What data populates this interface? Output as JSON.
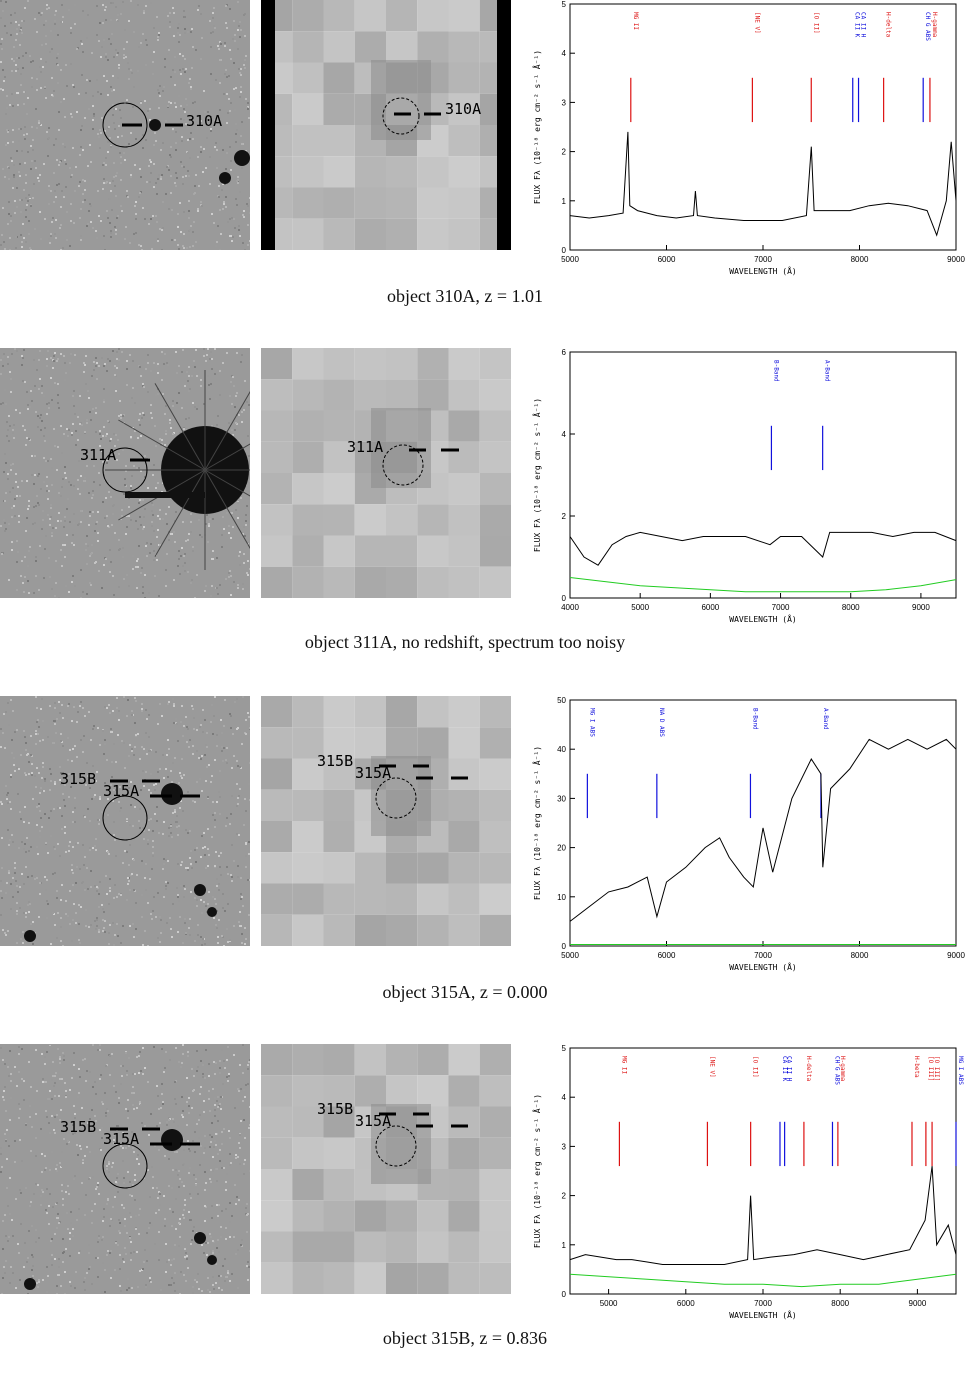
{
  "panels": [
    {
      "id": "310A",
      "caption": "object 310A, z = 1.01",
      "labels": [
        "310A"
      ],
      "chart_data": {
        "type": "line",
        "xlabel": "WAVELENGTH (Å)",
        "ylabel": "FLUX Fλ (10⁻¹⁸ erg cm⁻² s⁻¹ Å⁻¹)",
        "xlim": [
          5000,
          9000
        ],
        "ylim": [
          0,
          5
        ],
        "xticks": [
          5000,
          6000,
          7000,
          8000,
          9000
        ],
        "yticks": [
          0,
          1,
          2,
          3,
          4,
          5
        ],
        "lines": [
          {
            "label": "MG II",
            "x": 5630,
            "color": "#d11"
          },
          {
            "label": "[NE V]",
            "x": 6890,
            "color": "#d11"
          },
          {
            "label": "[O II]",
            "x": 7500,
            "color": "#d11"
          },
          {
            "label": "CA II K",
            "x": 7930,
            "color": "#11d"
          },
          {
            "label": "CA II H",
            "x": 7990,
            "color": "#11d"
          },
          {
            "label": "H-delta",
            "x": 8250,
            "color": "#d11"
          },
          {
            "label": "CH G ABS",
            "x": 8660,
            "color": "#11d"
          },
          {
            "label": "H-gamma",
            "x": 8730,
            "color": "#d11"
          }
        ],
        "series": [
          {
            "color": "#000",
            "values": [
              [
                5000,
                0.7
              ],
              [
                5200,
                0.65
              ],
              [
                5400,
                0.7
              ],
              [
                5550,
                0.75
              ],
              [
                5600,
                2.4
              ],
              [
                5620,
                0.9
              ],
              [
                5700,
                0.8
              ],
              [
                5900,
                0.7
              ],
              [
                6100,
                0.65
              ],
              [
                6280,
                0.7
              ],
              [
                6300,
                1.2
              ],
              [
                6320,
                0.7
              ],
              [
                6500,
                0.65
              ],
              [
                6800,
                0.6
              ],
              [
                7000,
                0.6
              ],
              [
                7200,
                0.6
              ],
              [
                7450,
                0.7
              ],
              [
                7500,
                2.1
              ],
              [
                7530,
                0.8
              ],
              [
                7700,
                0.8
              ],
              [
                7900,
                0.8
              ],
              [
                8100,
                0.9
              ],
              [
                8300,
                0.95
              ],
              [
                8500,
                0.9
              ],
              [
                8700,
                0.8
              ],
              [
                8800,
                0.3
              ],
              [
                8900,
                1.0
              ],
              [
                8950,
                2.2
              ],
              [
                9000,
                1.0
              ]
            ]
          }
        ]
      }
    },
    {
      "id": "311A",
      "caption": "object 311A, no redshift, spectrum too noisy",
      "labels": [
        "311A"
      ],
      "chart_data": {
        "type": "line",
        "xlabel": "WAVELENGTH (Å)",
        "ylabel": "FLUX Fλ (10⁻¹⁸ erg cm⁻² s⁻¹ Å⁻¹)",
        "xlim": [
          4000,
          9500
        ],
        "ylim": [
          0,
          6
        ],
        "xticks": [
          4000,
          5000,
          6000,
          7000,
          8000,
          9000
        ],
        "yticks": [
          0,
          2,
          4,
          6
        ],
        "lines": [
          {
            "label": "B-Band",
            "x": 6870,
            "color": "#11d"
          },
          {
            "label": "A-Band",
            "x": 7600,
            "color": "#11d"
          }
        ],
        "series": [
          {
            "color": "#000",
            "values": [
              [
                4000,
                1.5
              ],
              [
                4200,
                1.0
              ],
              [
                4400,
                0.8
              ],
              [
                4600,
                1.3
              ],
              [
                4800,
                1.5
              ],
              [
                5000,
                1.6
              ],
              [
                5300,
                1.5
              ],
              [
                5600,
                1.4
              ],
              [
                5900,
                1.5
              ],
              [
                6200,
                1.5
              ],
              [
                6500,
                1.5
              ],
              [
                6850,
                1.3
              ],
              [
                7000,
                1.5
              ],
              [
                7300,
                1.5
              ],
              [
                7600,
                1.0
              ],
              [
                7700,
                1.6
              ],
              [
                8000,
                1.6
              ],
              [
                8300,
                1.6
              ],
              [
                8600,
                1.5
              ],
              [
                8900,
                1.6
              ],
              [
                9200,
                1.6
              ],
              [
                9500,
                1.4
              ]
            ]
          },
          {
            "color": "#2c2",
            "values": [
              [
                4000,
                0.5
              ],
              [
                4500,
                0.4
              ],
              [
                5000,
                0.3
              ],
              [
                5500,
                0.25
              ],
              [
                6000,
                0.2
              ],
              [
                6500,
                0.15
              ],
              [
                7000,
                0.15
              ],
              [
                7500,
                0.15
              ],
              [
                8000,
                0.15
              ],
              [
                8500,
                0.2
              ],
              [
                9000,
                0.3
              ],
              [
                9500,
                0.45
              ]
            ]
          }
        ]
      }
    },
    {
      "id": "315A",
      "caption": "object 315A, z = 0.000",
      "labels": [
        "315B",
        "315A"
      ],
      "chart_data": {
        "type": "line",
        "xlabel": "WAVELENGTH (Å)",
        "ylabel": "FLUX Fλ (10⁻¹⁸ erg cm⁻² s⁻¹ Å⁻¹)",
        "xlim": [
          5000,
          9000
        ],
        "ylim": [
          0,
          50
        ],
        "xticks": [
          5000,
          6000,
          7000,
          8000,
          9000
        ],
        "yticks": [
          0,
          10,
          20,
          30,
          40,
          50
        ],
        "lines": [
          {
            "label": "MG I ABS",
            "x": 5180,
            "color": "#11d"
          },
          {
            "label": "NA D ABS",
            "x": 5900,
            "color": "#11d"
          },
          {
            "label": "B-Band",
            "x": 6870,
            "color": "#11d"
          },
          {
            "label": "A-Band",
            "x": 7600,
            "color": "#11d"
          }
        ],
        "series": [
          {
            "color": "#000",
            "values": [
              [
                5000,
                5
              ],
              [
                5200,
                8
              ],
              [
                5400,
                11
              ],
              [
                5600,
                12
              ],
              [
                5800,
                14
              ],
              [
                5900,
                6
              ],
              [
                6000,
                13
              ],
              [
                6200,
                16
              ],
              [
                6400,
                20
              ],
              [
                6550,
                22
              ],
              [
                6650,
                18
              ],
              [
                6800,
                14
              ],
              [
                6900,
                12
              ],
              [
                7000,
                24
              ],
              [
                7100,
                15
              ],
              [
                7300,
                30
              ],
              [
                7500,
                38
              ],
              [
                7600,
                35
              ],
              [
                7620,
                16
              ],
              [
                7700,
                32
              ],
              [
                7900,
                36
              ],
              [
                8100,
                42
              ],
              [
                8300,
                40
              ],
              [
                8500,
                42
              ],
              [
                8700,
                40
              ],
              [
                8900,
                42
              ],
              [
                9000,
                40
              ]
            ]
          },
          {
            "color": "#2c2",
            "values": [
              [
                5000,
                0.3
              ],
              [
                9000,
                0.3
              ]
            ]
          }
        ]
      }
    },
    {
      "id": "315B",
      "caption": "object 315B, z = 0.836",
      "labels": [
        "315B",
        "315A"
      ],
      "chart_data": {
        "type": "line",
        "xlabel": "WAVELENGTH (Å)",
        "ylabel": "FLUX Fλ (10⁻¹⁸ erg cm⁻² s⁻¹ Å⁻¹)",
        "xlim": [
          4500,
          9500
        ],
        "ylim": [
          0,
          5
        ],
        "xticks": [
          5000,
          6000,
          7000,
          8000,
          9000
        ],
        "yticks": [
          0,
          1,
          2,
          3,
          4,
          5
        ],
        "lines": [
          {
            "label": "MG II",
            "x": 5140,
            "color": "#d11"
          },
          {
            "label": "[NE V]",
            "x": 6280,
            "color": "#d11"
          },
          {
            "label": "[O II]",
            "x": 6840,
            "color": "#d11"
          },
          {
            "label": "CA II K",
            "x": 7220,
            "color": "#11d"
          },
          {
            "label": "CA II H",
            "x": 7280,
            "color": "#11d"
          },
          {
            "label": "H-delta",
            "x": 7530,
            "color": "#d11"
          },
          {
            "label": "CH G ABS",
            "x": 7900,
            "color": "#11d"
          },
          {
            "label": "H-gamma",
            "x": 7970,
            "color": "#d11"
          },
          {
            "label": "H-beta",
            "x": 8930,
            "color": "#d11"
          },
          {
            "label": "[O III]",
            "x": 9110,
            "color": "#d11"
          },
          {
            "label": "[O III]",
            "x": 9190,
            "color": "#d11"
          },
          {
            "label": "MG I ABS",
            "x": 9500,
            "color": "#11d"
          }
        ],
        "series": [
          {
            "color": "#000",
            "values": [
              [
                4500,
                0.7
              ],
              [
                4700,
                0.8
              ],
              [
                4900,
                0.75
              ],
              [
                5100,
                0.7
              ],
              [
                5300,
                0.7
              ],
              [
                5500,
                0.65
              ],
              [
                5700,
                0.6
              ],
              [
                5900,
                0.6
              ],
              [
                6100,
                0.6
              ],
              [
                6300,
                0.6
              ],
              [
                6500,
                0.6
              ],
              [
                6800,
                0.7
              ],
              [
                6840,
                2.0
              ],
              [
                6880,
                0.7
              ],
              [
                7100,
                0.75
              ],
              [
                7400,
                0.8
              ],
              [
                7700,
                0.9
              ],
              [
                8000,
                0.8
              ],
              [
                8300,
                0.7
              ],
              [
                8600,
                0.8
              ],
              [
                8900,
                0.9
              ],
              [
                9100,
                1.5
              ],
              [
                9190,
                2.6
              ],
              [
                9250,
                1.0
              ],
              [
                9400,
                1.4
              ],
              [
                9500,
                0.8
              ]
            ]
          },
          {
            "color": "#2c2",
            "values": [
              [
                4500,
                0.4
              ],
              [
                5000,
                0.35
              ],
              [
                5500,
                0.3
              ],
              [
                6000,
                0.25
              ],
              [
                6500,
                0.2
              ],
              [
                7000,
                0.2
              ],
              [
                7500,
                0.15
              ],
              [
                8000,
                0.2
              ],
              [
                8500,
                0.2
              ],
              [
                9000,
                0.3
              ],
              [
                9500,
                0.4
              ]
            ]
          }
        ]
      }
    }
  ]
}
